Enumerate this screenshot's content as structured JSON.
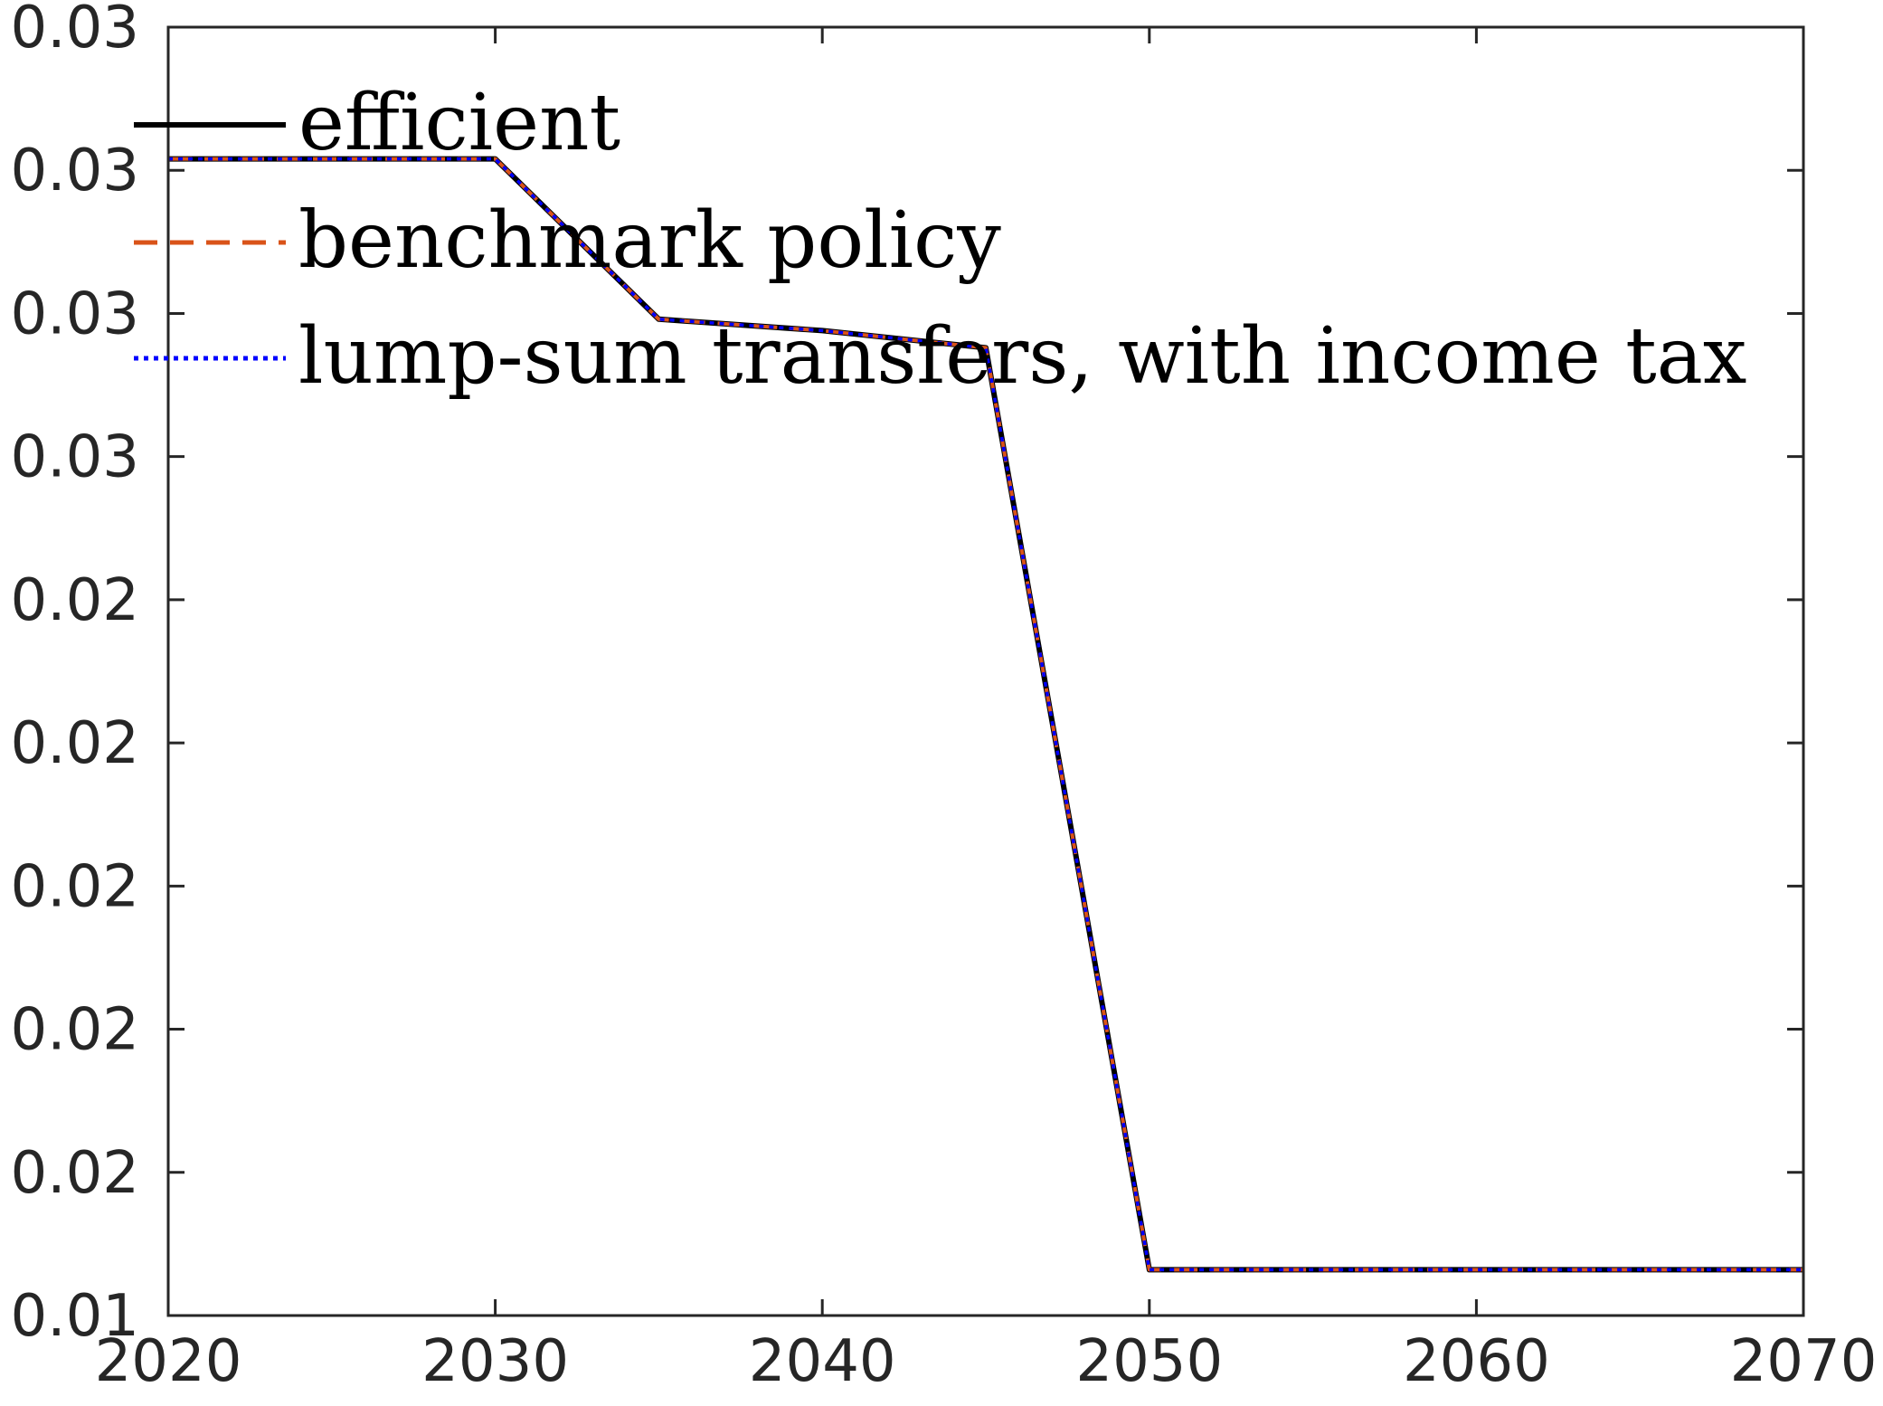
{
  "chart_data": {
    "type": "line",
    "title": "",
    "xlabel": "",
    "ylabel": "",
    "xlim": [
      2020,
      2070
    ],
    "ylim": [
      0.0125,
      0.035
    ],
    "xticks": [
      2020,
      2030,
      2040,
      2050,
      2060,
      2070
    ],
    "xtick_labels": [
      "2020",
      "2030",
      "2040",
      "2050",
      "2060",
      "2070"
    ],
    "yticks": [
      0.0125,
      0.015,
      0.0175,
      0.02,
      0.0225,
      0.025,
      0.0275,
      0.03,
      0.0325,
      0.035
    ],
    "ytick_labels": [
      "0.01",
      "0.02",
      "0.02",
      "0.02",
      "0.02",
      "0.02",
      "0.03",
      "0.03",
      "0.03",
      "0.03"
    ],
    "grid": false,
    "legend_position": "top-left",
    "series": [
      {
        "name": "efficient",
        "color": "#000000",
        "style": "solid",
        "x": [
          2020,
          2025,
          2030,
          2035,
          2040,
          2045,
          2050,
          2055,
          2060,
          2065,
          2070
        ],
        "y": [
          0.0327,
          0.0327,
          0.0327,
          0.0299,
          0.0297,
          0.0294,
          0.0133,
          0.0133,
          0.0133,
          0.0133,
          0.0133
        ]
      },
      {
        "name": "benchmark policy",
        "color": "#D95319",
        "style": "dashed",
        "x": [
          2020,
          2025,
          2030,
          2035,
          2040,
          2045,
          2050,
          2055,
          2060,
          2065,
          2070
        ],
        "y": [
          0.0327,
          0.0327,
          0.0327,
          0.0299,
          0.0297,
          0.0294,
          0.0133,
          0.0133,
          0.0133,
          0.0133,
          0.0133
        ]
      },
      {
        "name": "lump-sum transfers, with income tax",
        "color": "#0000FF",
        "style": "dotted",
        "x": [
          2020,
          2025,
          2030,
          2035,
          2040,
          2045,
          2050,
          2055,
          2060,
          2065,
          2070
        ],
        "y": [
          0.0327,
          0.0327,
          0.0327,
          0.0299,
          0.0297,
          0.0294,
          0.0133,
          0.0133,
          0.0133,
          0.0133,
          0.0133
        ]
      }
    ]
  }
}
